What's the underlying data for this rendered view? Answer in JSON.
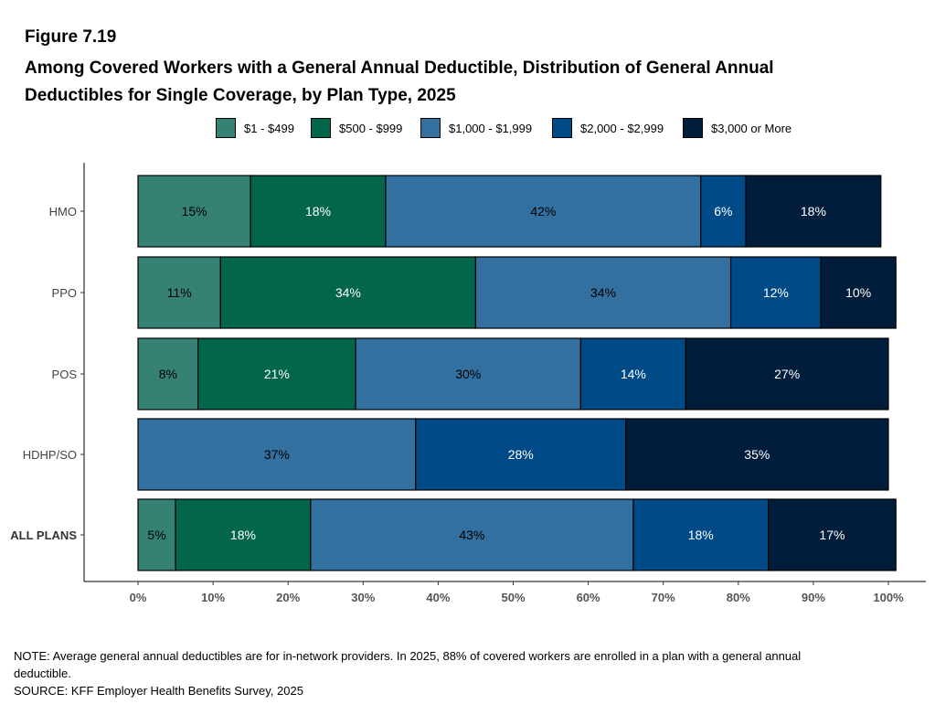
{
  "figure_label": "Figure 7.19",
  "title_lines": [
    "Among Covered Workers with a General Annual Deductible, Distribution of General Annual",
    "Deductibles for Single Coverage, by Plan Type, 2025"
  ],
  "note_lines": [
    "NOTE: Average general annual deductibles are for in-network providers.  In 2025, 88% of covered workers are enrolled in a plan with a general annual",
    "deductible.",
    "SOURCE: KFF Employer Health Benefits Survey, 2025"
  ],
  "colors": {
    "s1": "#358274",
    "s2": "#02664b",
    "s3": "#336f9f",
    "s4": "#004a87",
    "s5": "#001e3c"
  },
  "chart_data": {
    "type": "bar",
    "orientation": "horizontal",
    "stacked": true,
    "categories": [
      "HMO",
      "PPO",
      "POS",
      "HDHP/SO",
      "ALL PLANS"
    ],
    "bold_categories": [
      "ALL PLANS"
    ],
    "series": [
      {
        "name": "$1 - $499",
        "values": [
          15,
          11,
          8,
          0,
          5
        ],
        "labels": [
          "15%",
          "11%",
          "8%",
          "",
          "5%"
        ],
        "color": "#358274",
        "label_color": "#000000"
      },
      {
        "name": "$500 - $999",
        "values": [
          18,
          34,
          21,
          0,
          18
        ],
        "labels": [
          "18%",
          "34%",
          "21%",
          "",
          "18%"
        ],
        "color": "#02664b",
        "label_color": "#ffffff"
      },
      {
        "name": "$1,000 - $1,999",
        "values": [
          42,
          34,
          30,
          37,
          43
        ],
        "labels": [
          "42%",
          "34%",
          "30%",
          "37%",
          "43%"
        ],
        "color": "#336f9f",
        "label_color": "#000000"
      },
      {
        "name": "$2,000 - $2,999",
        "values": [
          6,
          12,
          14,
          28,
          18
        ],
        "labels": [
          "6%",
          "12%",
          "14%",
          "28%",
          "18%"
        ],
        "color": "#004a87",
        "label_color": "#ffffff"
      },
      {
        "name": "$3,000 or More",
        "values": [
          18,
          10,
          27,
          35,
          17
        ],
        "labels": [
          "18%",
          "10%",
          "27%",
          "35%",
          "17%"
        ],
        "color": "#001e3c",
        "label_color": "#ffffff"
      }
    ],
    "xlim": [
      0,
      100
    ],
    "xticks": [
      0,
      10,
      20,
      30,
      40,
      50,
      60,
      70,
      80,
      90,
      100
    ],
    "xtick_labels": [
      "0%",
      "10%",
      "20%",
      "30%",
      "40%",
      "50%",
      "60%",
      "70%",
      "80%",
      "90%",
      "100%"
    ],
    "legend_position": "top",
    "grid": false
  }
}
